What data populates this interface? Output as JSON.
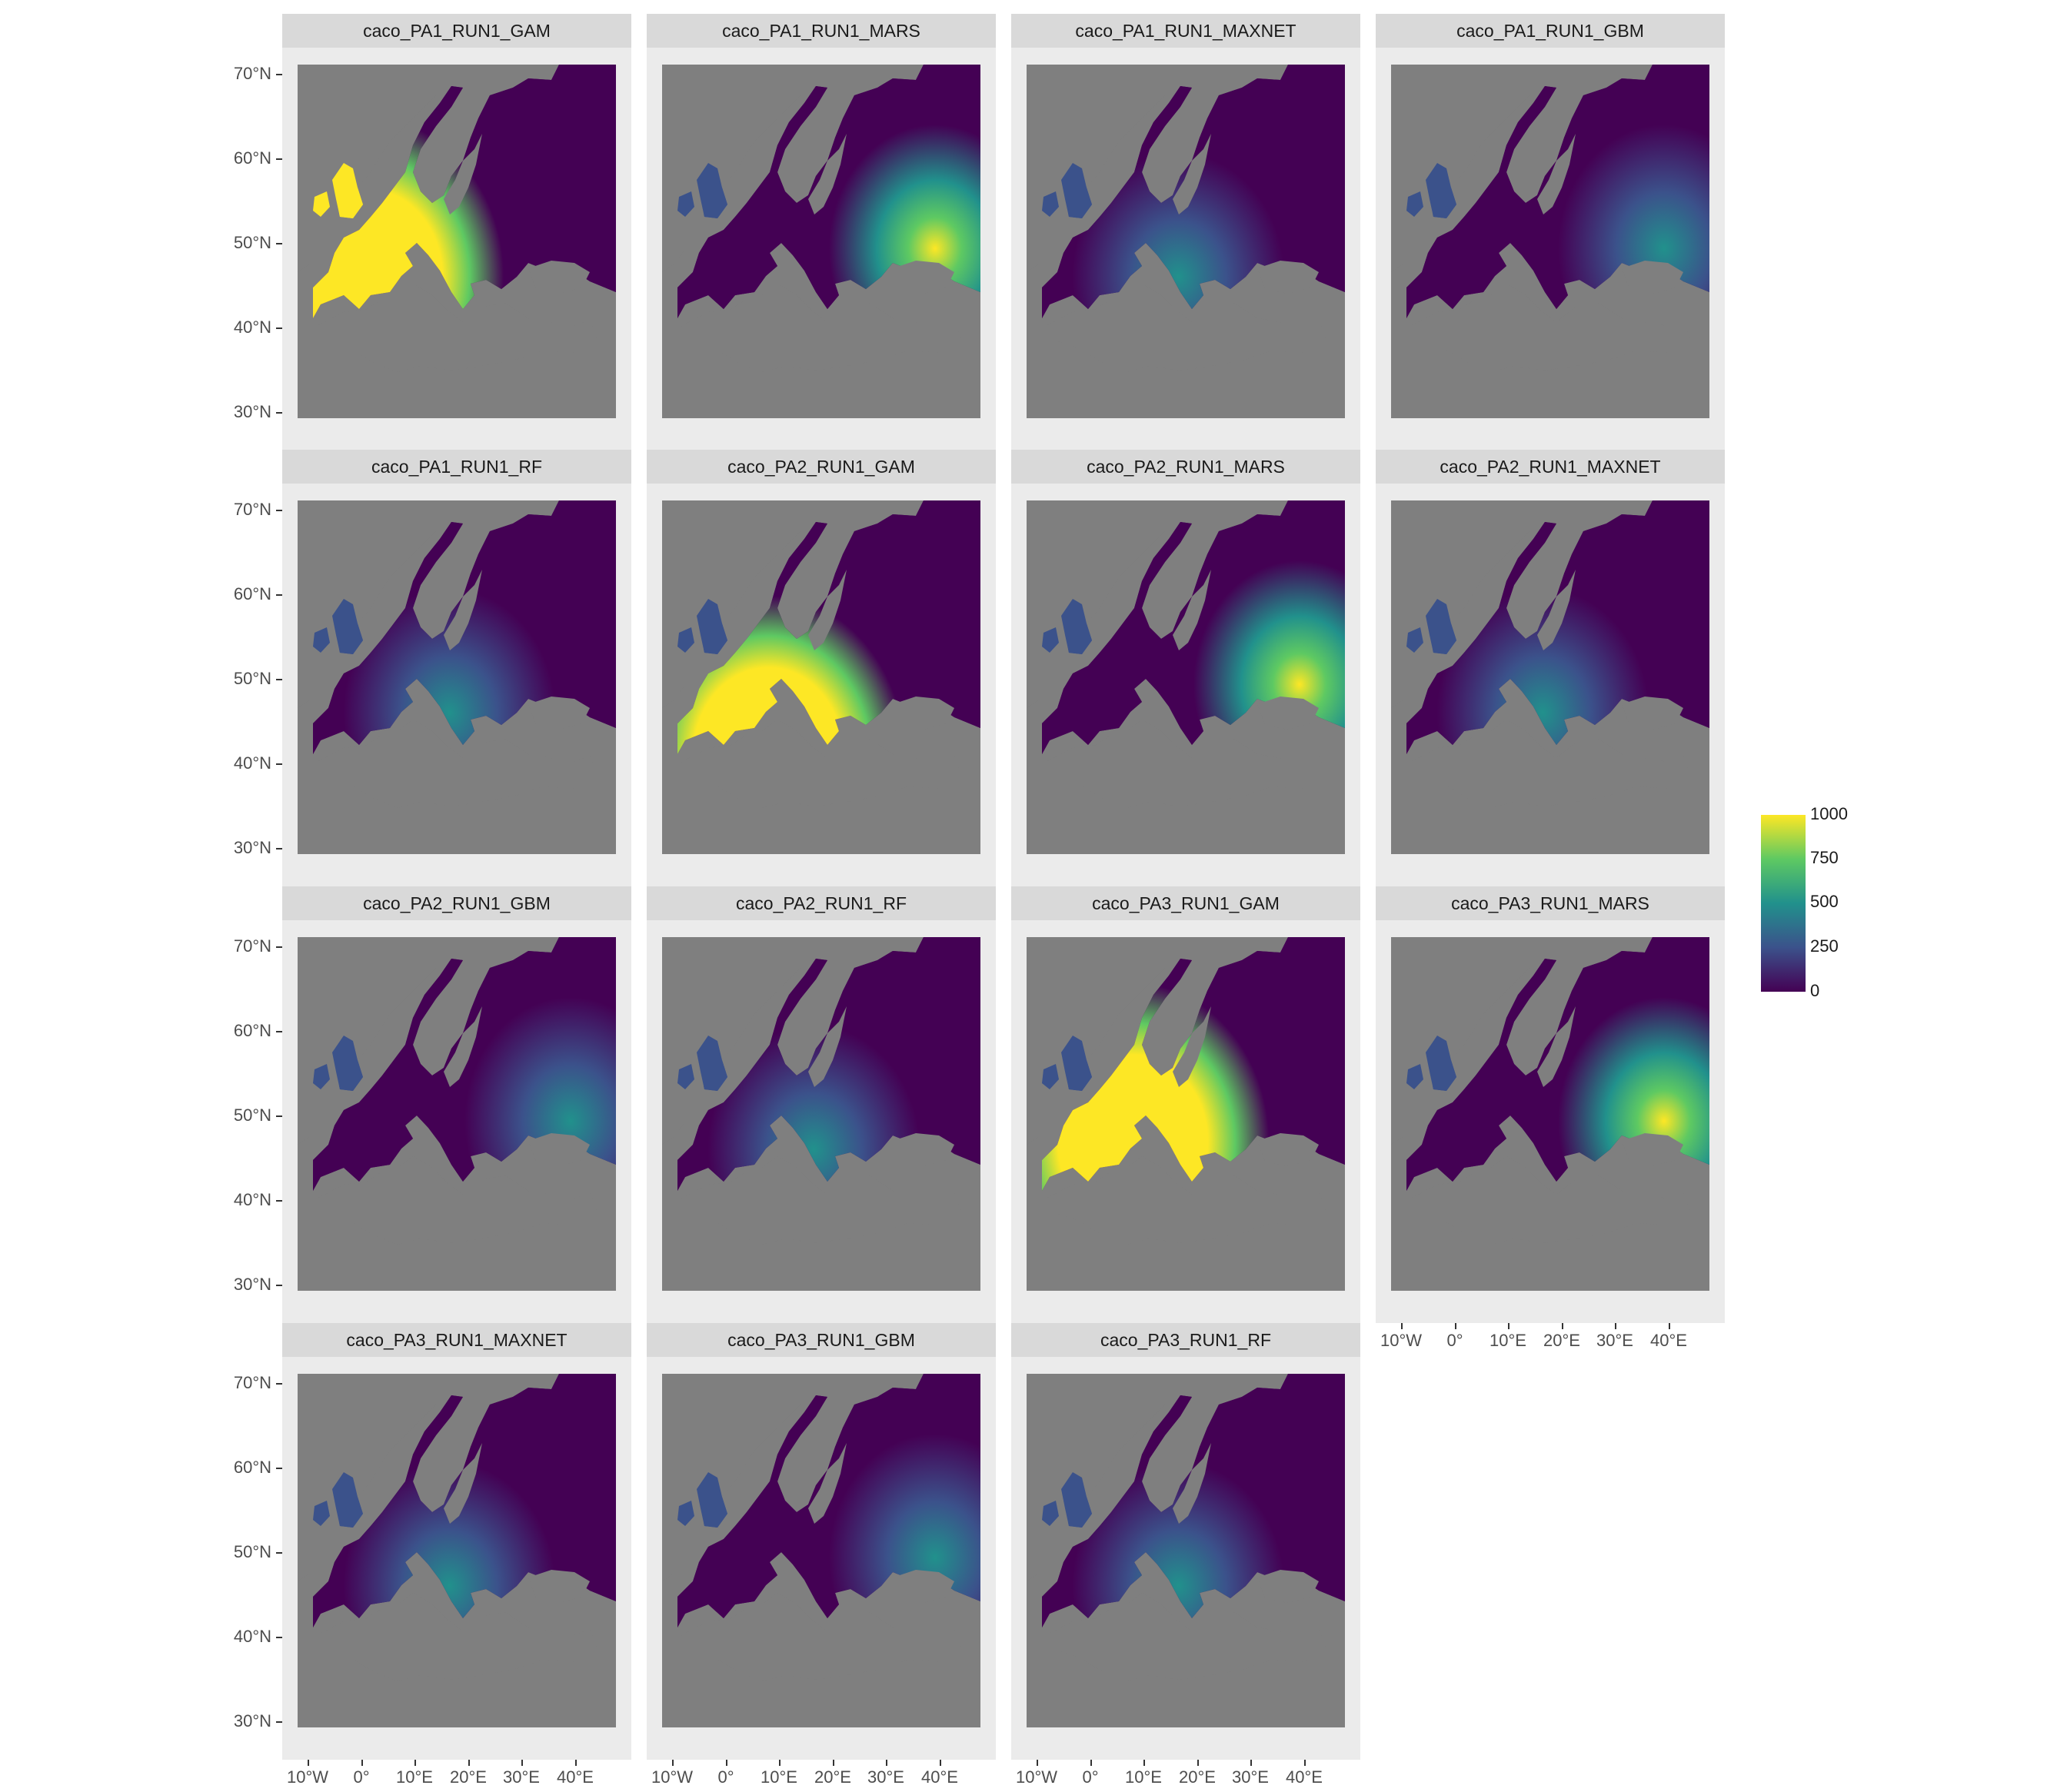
{
  "figure": {
    "colors": {
      "panel_background": "#ebebeb",
      "strip_background": "#d9d9d9",
      "na_gray": "#7f7f7f",
      "viridis": [
        "#440154",
        "#3b528b",
        "#21918c",
        "#5ec962",
        "#fde725"
      ]
    },
    "y_ticks": [
      "70°N",
      "60°N",
      "50°N",
      "40°N",
      "30°N"
    ],
    "x_ticks": [
      "10°W",
      "0°",
      "10°E",
      "20°E",
      "30°E",
      "40°E"
    ],
    "panels": [
      {
        "title": "caco_PA1_RUN1_GAM",
        "intensity": "high",
        "hotspot": "west"
      },
      {
        "title": "caco_PA1_RUN1_MARS",
        "intensity": "medium",
        "hotspot": "east"
      },
      {
        "title": "caco_PA1_RUN1_MAXNET",
        "intensity": "low",
        "hotspot": "central"
      },
      {
        "title": "caco_PA1_RUN1_GBM",
        "intensity": "low",
        "hotspot": "east"
      },
      {
        "title": "caco_PA1_RUN1_RF",
        "intensity": "low",
        "hotspot": "central"
      },
      {
        "title": "caco_PA2_RUN1_GAM",
        "intensity": "high",
        "hotspot": "south"
      },
      {
        "title": "caco_PA2_RUN1_MARS",
        "intensity": "medium",
        "hotspot": "east"
      },
      {
        "title": "caco_PA2_RUN1_MAXNET",
        "intensity": "low",
        "hotspot": "central"
      },
      {
        "title": "caco_PA2_RUN1_GBM",
        "intensity": "low",
        "hotspot": "east"
      },
      {
        "title": "caco_PA2_RUN1_RF",
        "intensity": "low",
        "hotspot": "central"
      },
      {
        "title": "caco_PA3_RUN1_GAM",
        "intensity": "high",
        "hotspot": "central-west"
      },
      {
        "title": "caco_PA3_RUN1_MARS",
        "intensity": "medium",
        "hotspot": "east"
      },
      {
        "title": "caco_PA3_RUN1_MAXNET",
        "intensity": "low",
        "hotspot": "central"
      },
      {
        "title": "caco_PA3_RUN1_GBM",
        "intensity": "low",
        "hotspot": "east"
      },
      {
        "title": "caco_PA3_RUN1_RF",
        "intensity": "low",
        "hotspot": "central"
      }
    ]
  },
  "legend": {
    "labels": [
      "1000",
      "750",
      "500",
      "250",
      "0"
    ],
    "range": [
      0,
      1000
    ]
  }
}
